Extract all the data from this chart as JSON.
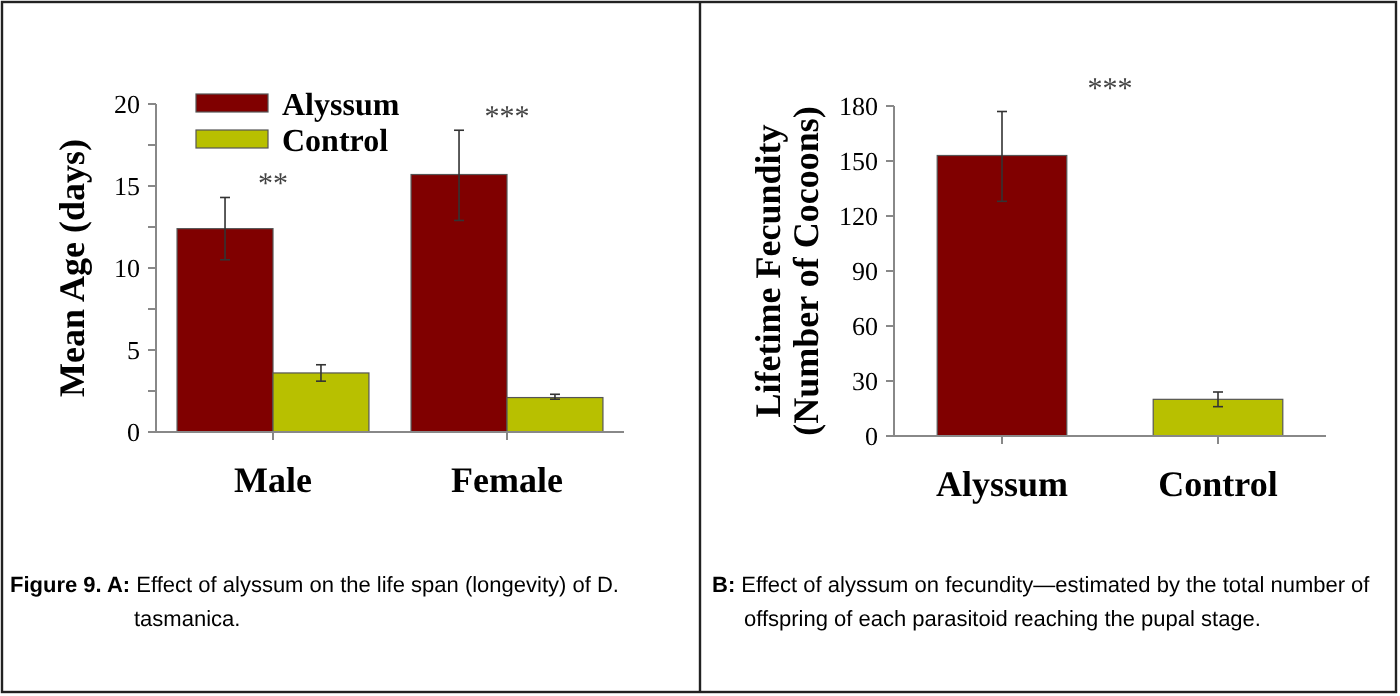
{
  "chart_data": [
    {
      "type": "bar",
      "ylabel": "Mean Age (days)",
      "categories": [
        "Male",
        "Female"
      ],
      "series": [
        {
          "name": "Alyssum",
          "color": "#800000",
          "values": [
            12.4,
            15.7
          ],
          "errors": [
            [
              10.5,
              14.3
            ],
            [
              12.9,
              18.4
            ]
          ]
        },
        {
          "name": "Control",
          "color": "#b8c000",
          "values": [
            3.6,
            2.1
          ],
          "errors": [
            [
              3.1,
              4.1
            ],
            [
              2.0,
              2.3
            ]
          ]
        }
      ],
      "ylim": [
        0,
        20
      ],
      "yticks": [
        0,
        {
          "value": 2.5,
          "label": null
        },
        5,
        {
          "value": 7.5,
          "label": null
        },
        10,
        {
          "value": 12.5,
          "label": null
        },
        15,
        {
          "value": 17.5,
          "label": null
        },
        20
      ],
      "grid": false,
      "legend": "top left",
      "annotations": [
        "**",
        "***",
        "Figure 9. A: Effect of alyssum on the life span (longevity) of D. tasmanica."
      ]
    },
    {
      "type": "bar",
      "ylabel": "Lifetime Fecundity\n(Number of Cocoons)",
      "categories": [
        "Alyssum",
        "Control"
      ],
      "values": [
        153,
        20
      ],
      "colors": [
        "#800000",
        "#b8c000"
      ],
      "errors": [
        [
          128,
          177
        ],
        [
          16,
          24
        ]
      ],
      "ylim": [
        0,
        180
      ],
      "yticks": [
        0,
        30,
        60,
        90,
        120,
        150,
        180
      ],
      "grid": false,
      "annotations": [
        "***",
        "B: Effect of alyssum on fecundity—estimated by the total number of offspring of each parasitoid reaching the pupal stage."
      ]
    }
  ]
}
